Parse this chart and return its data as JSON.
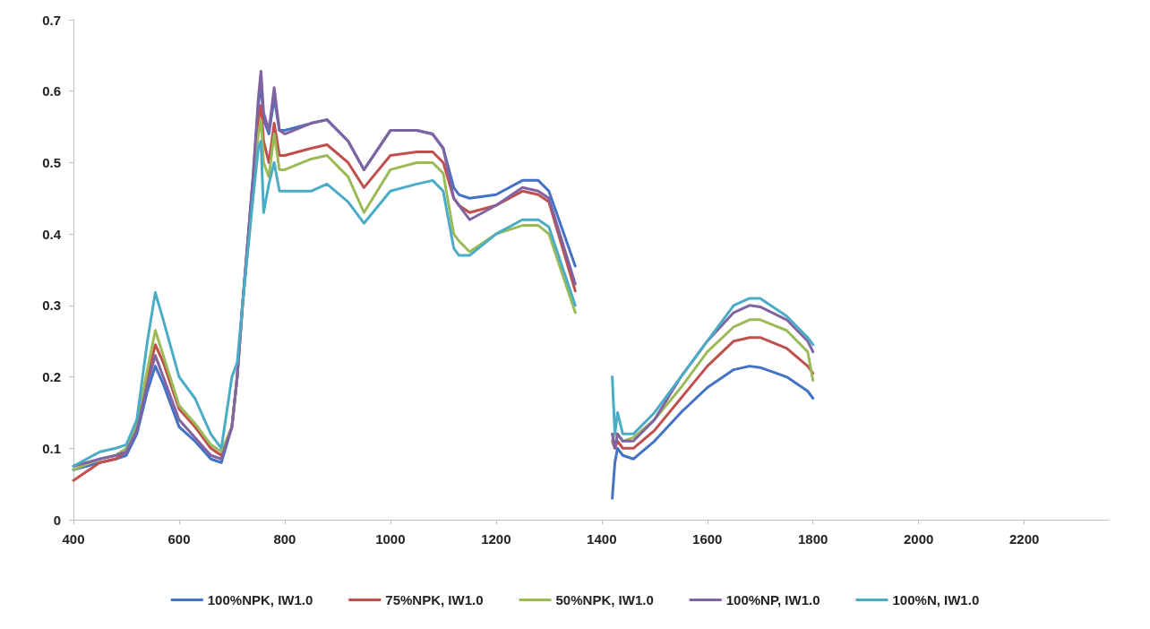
{
  "chart_data": {
    "type": "line",
    "x": [
      400,
      450,
      480,
      500,
      520,
      540,
      555,
      570,
      600,
      630,
      660,
      680,
      700,
      710,
      720,
      740,
      750,
      755,
      760,
      770,
      780,
      790,
      800,
      850,
      880,
      920,
      950,
      1000,
      1050,
      1080,
      1100,
      1120,
      1130,
      1150,
      1200,
      1250,
      1280,
      1300,
      1350,
      1380,
      1420,
      1425,
      1430,
      1440,
      1460,
      1500,
      1550,
      1600,
      1650,
      1680,
      1700,
      1750,
      1790,
      1800
    ],
    "series": [
      {
        "name": "100%NPK, IW1.0",
        "color": "#4472c4",
        "values": [
          0.07,
          0.08,
          0.085,
          0.09,
          0.12,
          0.18,
          0.215,
          0.19,
          0.13,
          0.11,
          0.085,
          0.08,
          0.13,
          0.2,
          0.3,
          0.48,
          0.58,
          0.61,
          0.56,
          0.54,
          0.59,
          0.545,
          0.545,
          0.555,
          0.56,
          0.53,
          0.49,
          0.545,
          0.545,
          0.54,
          0.52,
          0.465,
          0.455,
          0.45,
          0.455,
          0.475,
          0.475,
          0.46,
          0.355,
          null,
          0.03,
          0.08,
          0.1,
          0.09,
          0.085,
          0.11,
          0.15,
          0.185,
          0.21,
          0.215,
          0.213,
          0.2,
          0.18,
          0.17
        ]
      },
      {
        "name": "75%NPK, IW1.0",
        "color": "#c0504d",
        "values": [
          0.055,
          0.08,
          0.085,
          0.095,
          0.13,
          0.2,
          0.245,
          0.22,
          0.155,
          0.13,
          0.1,
          0.09,
          0.13,
          0.2,
          0.3,
          0.47,
          0.56,
          0.58,
          0.53,
          0.5,
          0.555,
          0.51,
          0.51,
          0.52,
          0.525,
          0.5,
          0.465,
          0.51,
          0.515,
          0.515,
          0.5,
          0.45,
          0.44,
          0.43,
          0.44,
          0.46,
          0.455,
          0.445,
          0.32,
          null,
          0.11,
          0.1,
          0.11,
          0.1,
          0.1,
          0.125,
          0.17,
          0.215,
          0.25,
          0.255,
          0.255,
          0.24,
          0.215,
          0.205
        ]
      },
      {
        "name": "50%NPK, IW1.0",
        "color": "#9bbb59",
        "values": [
          0.07,
          0.085,
          0.09,
          0.1,
          0.135,
          0.21,
          0.265,
          0.23,
          0.16,
          0.135,
          0.105,
          0.095,
          0.13,
          0.2,
          0.3,
          0.46,
          0.54,
          0.56,
          0.5,
          0.48,
          0.54,
          0.49,
          0.49,
          0.505,
          0.51,
          0.48,
          0.43,
          0.49,
          0.5,
          0.5,
          0.485,
          0.4,
          0.39,
          0.375,
          0.4,
          0.412,
          0.412,
          0.4,
          0.29,
          null,
          0.11,
          0.12,
          0.12,
          0.11,
          0.115,
          0.14,
          0.185,
          0.235,
          0.27,
          0.28,
          0.28,
          0.265,
          0.235,
          0.195
        ]
      },
      {
        "name": "100%NP, IW1.0",
        "color": "#8064a2",
        "values": [
          0.075,
          0.085,
          0.09,
          0.095,
          0.125,
          0.19,
          0.23,
          0.2,
          0.14,
          0.115,
          0.09,
          0.085,
          0.13,
          0.2,
          0.3,
          0.48,
          0.59,
          0.628,
          0.57,
          0.545,
          0.605,
          0.545,
          0.54,
          0.555,
          0.56,
          0.53,
          0.49,
          0.545,
          0.545,
          0.54,
          0.52,
          0.45,
          0.44,
          0.42,
          0.44,
          0.465,
          0.46,
          0.45,
          0.33,
          null,
          0.12,
          0.1,
          0.12,
          0.11,
          0.11,
          0.14,
          0.2,
          0.25,
          0.29,
          0.3,
          0.298,
          0.28,
          0.25,
          0.235
        ]
      },
      {
        "name": "100%N, IW1.0",
        "color": "#4bacc6",
        "values": [
          0.075,
          0.095,
          0.1,
          0.105,
          0.14,
          0.25,
          0.318,
          0.28,
          0.2,
          0.17,
          0.12,
          0.1,
          0.2,
          0.22,
          0.3,
          0.45,
          0.52,
          0.53,
          0.43,
          0.47,
          0.5,
          0.46,
          0.46,
          0.46,
          0.47,
          0.445,
          0.415,
          0.46,
          0.47,
          0.475,
          0.46,
          0.38,
          0.37,
          0.37,
          0.4,
          0.42,
          0.42,
          0.41,
          0.3,
          null,
          0.2,
          0.12,
          0.15,
          0.12,
          0.12,
          0.15,
          0.2,
          0.25,
          0.3,
          0.31,
          0.31,
          0.285,
          0.255,
          0.245
        ]
      }
    ],
    "xlim": [
      400,
      2360
    ],
    "xticks": [
      400,
      600,
      800,
      1000,
      1200,
      1400,
      1600,
      1800,
      2000,
      2200
    ],
    "ylim": [
      0,
      0.7
    ],
    "yticks": [
      0,
      0.1,
      0.2,
      0.3,
      0.4,
      0.5,
      0.6,
      0.7
    ],
    "grid": false,
    "legend": "bottom",
    "marker": "none",
    "line_style": "solid"
  }
}
